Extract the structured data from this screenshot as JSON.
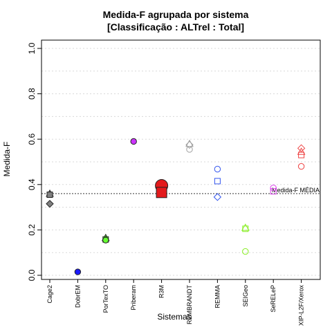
{
  "chart_data": {
    "type": "scatter",
    "title_line1": "Medida-F agrupada por sistema",
    "title_line2": "[Classificação : ALTrel : Total]",
    "xlabel": "Sistemas",
    "ylabel": "Medida-F",
    "ylim": [
      0,
      1
    ],
    "y_ticks": [
      "0.0",
      "0.2",
      "0.4",
      "0.6",
      "0.8",
      "1.0"
    ],
    "grid": true,
    "categories": [
      "Cage2",
      "DobrEM",
      "PorTexTO",
      "Priberam",
      "R3M",
      "REMBRANDT",
      "REMMA",
      "SEIGeo",
      "SeRELeP",
      "XIP-L2F/Xerox"
    ],
    "reference_line": {
      "label": "Medida-F MÉDIA",
      "value": 0.36
    },
    "series": [
      {
        "category": "Cage2",
        "color": "#808080",
        "filled": true,
        "points": [
          {
            "shape": "triangle",
            "y": 0.36
          },
          {
            "shape": "square",
            "y": 0.355
          },
          {
            "shape": "diamond",
            "y": 0.315
          }
        ]
      },
      {
        "category": "DobrEM",
        "color": "#1a1aff",
        "filled": true,
        "points": [
          {
            "shape": "circle",
            "y": 0.015
          }
        ]
      },
      {
        "category": "PorTexTO",
        "color": "#66ff33",
        "filled": true,
        "points": [
          {
            "shape": "triangle",
            "y": 0.165
          },
          {
            "shape": "square",
            "y": 0.158
          },
          {
            "shape": "circle",
            "y": 0.155
          }
        ]
      },
      {
        "category": "Priberam",
        "color": "#cc33ff",
        "filled": true,
        "points": [
          {
            "shape": "circle",
            "y": 0.59
          }
        ]
      },
      {
        "category": "R3M",
        "color": "#e31a1c",
        "filled": true,
        "points": [
          {
            "shape": "circle-large",
            "y": 0.395
          },
          {
            "shape": "square-large",
            "y": 0.365
          }
        ]
      },
      {
        "category": "REMBRANDT",
        "color": "#a0a0a0",
        "filled": false,
        "points": [
          {
            "shape": "triangle",
            "y": 0.58
          },
          {
            "shape": "diamond",
            "y": 0.575
          },
          {
            "shape": "circle",
            "y": 0.555
          }
        ]
      },
      {
        "category": "REMMA",
        "color": "#3355ee",
        "filled": false,
        "points": [
          {
            "shape": "circle",
            "y": 0.468
          },
          {
            "shape": "square",
            "y": 0.415
          },
          {
            "shape": "diamond",
            "y": 0.345
          }
        ]
      },
      {
        "category": "SEIGeo",
        "color": "#88ee22",
        "filled": false,
        "points": [
          {
            "shape": "triangle",
            "y": 0.21
          },
          {
            "shape": "square",
            "y": 0.205
          },
          {
            "shape": "circle",
            "y": 0.105
          }
        ]
      },
      {
        "category": "SeRELeP",
        "color": "#dd44ee",
        "filled": false,
        "points": [
          {
            "shape": "circle",
            "y": 0.385
          },
          {
            "shape": "square",
            "y": 0.37
          }
        ]
      },
      {
        "category": "XIP-L2F/Xerox",
        "color": "#ee4444",
        "filled": false,
        "points": [
          {
            "shape": "diamond",
            "y": 0.56
          },
          {
            "shape": "triangle",
            "y": 0.545
          },
          {
            "shape": "square",
            "y": 0.53
          },
          {
            "shape": "circle",
            "y": 0.48
          }
        ]
      }
    ]
  }
}
